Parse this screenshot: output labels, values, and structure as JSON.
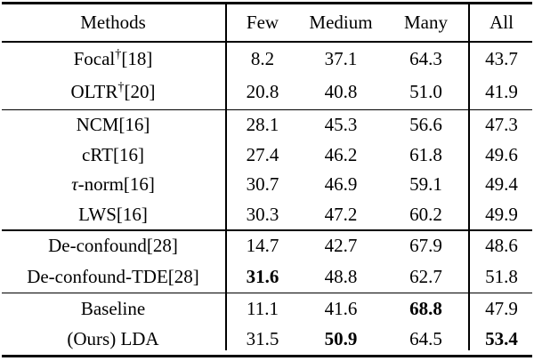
{
  "header": {
    "methods": "Methods",
    "few": "Few",
    "medium": "Medium",
    "many": "Many",
    "all": "All"
  },
  "sections": [
    {
      "rows": [
        {
          "m": "Focal",
          "sup": "†",
          "ref": "[18]",
          "few": "8.2",
          "medium": "37.1",
          "many": "64.3",
          "all": "43.7"
        },
        {
          "m": "OLTR",
          "sup": "†",
          "ref": "[20]",
          "few": "20.8",
          "medium": "40.8",
          "many": "51.0",
          "all": "41.9"
        }
      ]
    },
    {
      "rows": [
        {
          "m": "NCM",
          "ref": "[16]",
          "few": "28.1",
          "medium": "45.3",
          "many": "56.6",
          "all": "47.3"
        },
        {
          "m": "cRT",
          "ref": "[16]",
          "few": "27.4",
          "medium": "46.2",
          "many": "61.8",
          "all": "49.6"
        },
        {
          "mi": "τ",
          "m": "-norm",
          "ref": "[16]",
          "few": "30.7",
          "medium": "46.9",
          "many": "59.1",
          "all": "49.4"
        },
        {
          "m": "LWS",
          "ref": "[16]",
          "few": "30.3",
          "medium": "47.2",
          "many": "60.2",
          "all": "49.9"
        }
      ]
    },
    {
      "rows": [
        {
          "m": "De-confound",
          "ref": "[28]",
          "few": "14.7",
          "medium": "42.7",
          "many": "67.9",
          "all": "48.6"
        },
        {
          "m": "De-confound-TDE",
          "ref": "[28]",
          "few": "31.6",
          "medium": "48.8",
          "many": "62.7",
          "all": "51.8",
          "fw": {
            "few": "bold"
          }
        }
      ]
    },
    {
      "rows": [
        {
          "m": "Baseline",
          "few": "11.1",
          "medium": "41.6",
          "many": "68.8",
          "all": "47.9",
          "fw": {
            "many": "bold"
          }
        },
        {
          "m": "(Ours) LDA",
          "few": "31.5",
          "medium": "50.9",
          "many": "64.5",
          "all": "53.4",
          "fw": {
            "medium": "bold",
            "all": "bold"
          }
        }
      ]
    }
  ]
}
